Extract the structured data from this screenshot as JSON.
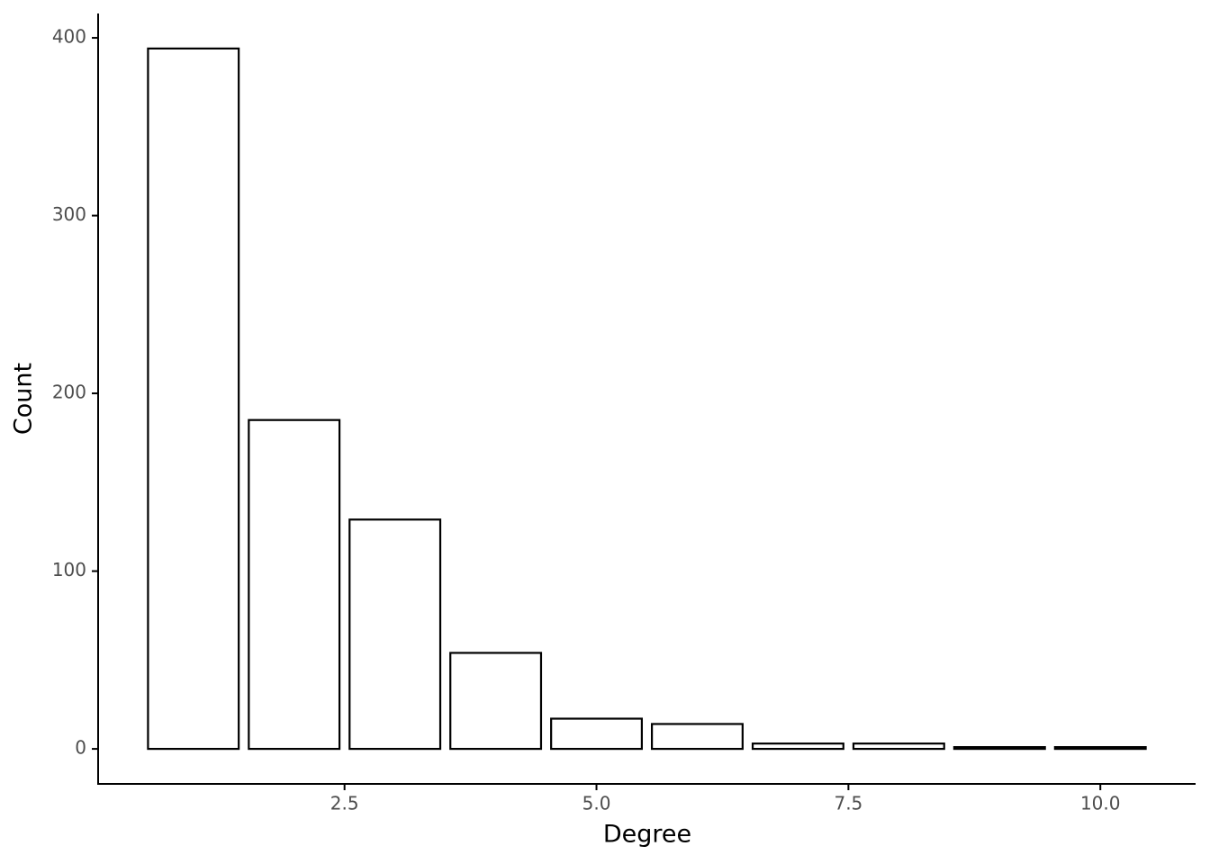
{
  "chart_data": {
    "type": "bar",
    "x": [
      1,
      2,
      3,
      4,
      5,
      6,
      7,
      8,
      9,
      10
    ],
    "values": [
      394,
      185,
      129,
      54,
      17,
      14,
      3,
      3,
      1,
      1
    ],
    "color": "#ffffff",
    "edgecolor": "#000000",
    "xlabel": "Degree",
    "ylabel": "Count",
    "xlim": [
      0.055,
      10.945
    ],
    "xticks": [
      2.5,
      {
        "value": 5,
        "label": "5.0"
      },
      7.5,
      {
        "value": 10,
        "label": "10.0"
      }
    ],
    "ylim": [
      -19.7,
      413.7
    ],
    "yticks": [
      0,
      100,
      200,
      300,
      400
    ],
    "grid": false
  }
}
